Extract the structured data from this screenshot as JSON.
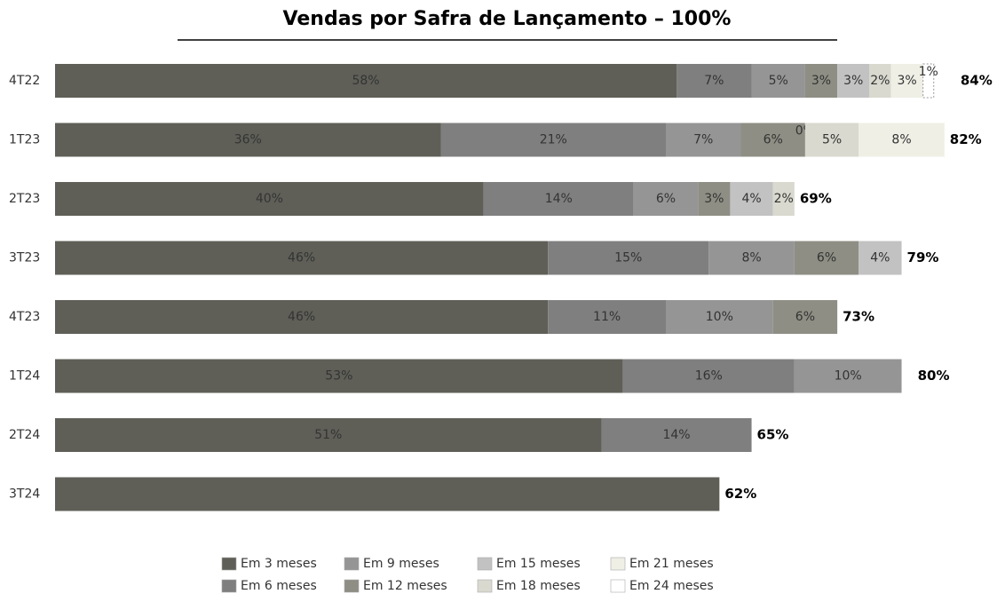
{
  "chart_data": {
    "type": "stacked-bar-horizontal",
    "title": "Vendas por Safra de Lançamento – 100%",
    "categories": [
      "4T22",
      "1T23",
      "2T23",
      "3T23",
      "4T23",
      "1T24",
      "2T24",
      "3T24"
    ],
    "series": [
      {
        "name": "Em 3 meses",
        "color": "#5f5f58",
        "values": [
          58,
          36,
          40,
          46,
          46,
          53,
          51,
          62
        ],
        "value_labels": [
          "58%",
          "36%",
          "40%",
          "46%",
          "46%",
          "53%",
          "51%",
          null
        ]
      },
      {
        "name": "Em 6 meses",
        "color": "#7f7f7f",
        "values": [
          7,
          21,
          14,
          15,
          11,
          16,
          14,
          null
        ],
        "value_labels": [
          "7%",
          "21%",
          "14%",
          "15%",
          "11%",
          "16%",
          "14%",
          null
        ]
      },
      {
        "name": "Em 9 meses",
        "color": "#959595",
        "values": [
          5,
          7,
          6,
          8,
          10,
          10,
          null,
          null
        ],
        "value_labels": [
          "5%",
          "7%",
          "6%",
          "8%",
          "10%",
          "10%",
          null,
          null
        ]
      },
      {
        "name": "Em 12 meses",
        "color": "#8e8e84",
        "values": [
          3,
          6,
          3,
          6,
          6,
          null,
          null,
          null
        ],
        "value_labels": [
          "3%",
          "6%",
          "3%",
          "6%",
          "6%",
          null,
          null,
          null
        ]
      },
      {
        "name": "Em 15 meses",
        "color": "#c2c2c2",
        "values": [
          3,
          0,
          4,
          4,
          null,
          null,
          null,
          null
        ],
        "value_labels": [
          "3%",
          "0%",
          "4%",
          "4%",
          null,
          null,
          null,
          null
        ]
      },
      {
        "name": "Em 18 meses",
        "color": "#d9d9cf",
        "values": [
          2,
          5,
          2,
          null,
          null,
          null,
          null,
          null
        ],
        "value_labels": [
          "2%",
          "5%",
          "2%",
          null,
          null,
          null,
          null,
          null
        ]
      },
      {
        "name": "Em 21 meses",
        "color": "#efefe6",
        "values": [
          3,
          8,
          null,
          null,
          null,
          null,
          null,
          null
        ],
        "value_labels": [
          "3%",
          "8%",
          null,
          null,
          null,
          null,
          null,
          null
        ]
      },
      {
        "name": "Em 24 meses",
        "color": "#ffffff",
        "values": [
          1,
          null,
          null,
          null,
          null,
          null,
          null,
          null
        ],
        "value_labels": [
          "1%",
          null,
          null,
          null,
          null,
          null,
          null,
          null
        ]
      }
    ],
    "totals": [
      84,
      82,
      69,
      79,
      73,
      80,
      65,
      62
    ],
    "total_labels": [
      "84%",
      "82%",
      "69%",
      "79%",
      "73%",
      "80%",
      "65%",
      "62%"
    ]
  }
}
